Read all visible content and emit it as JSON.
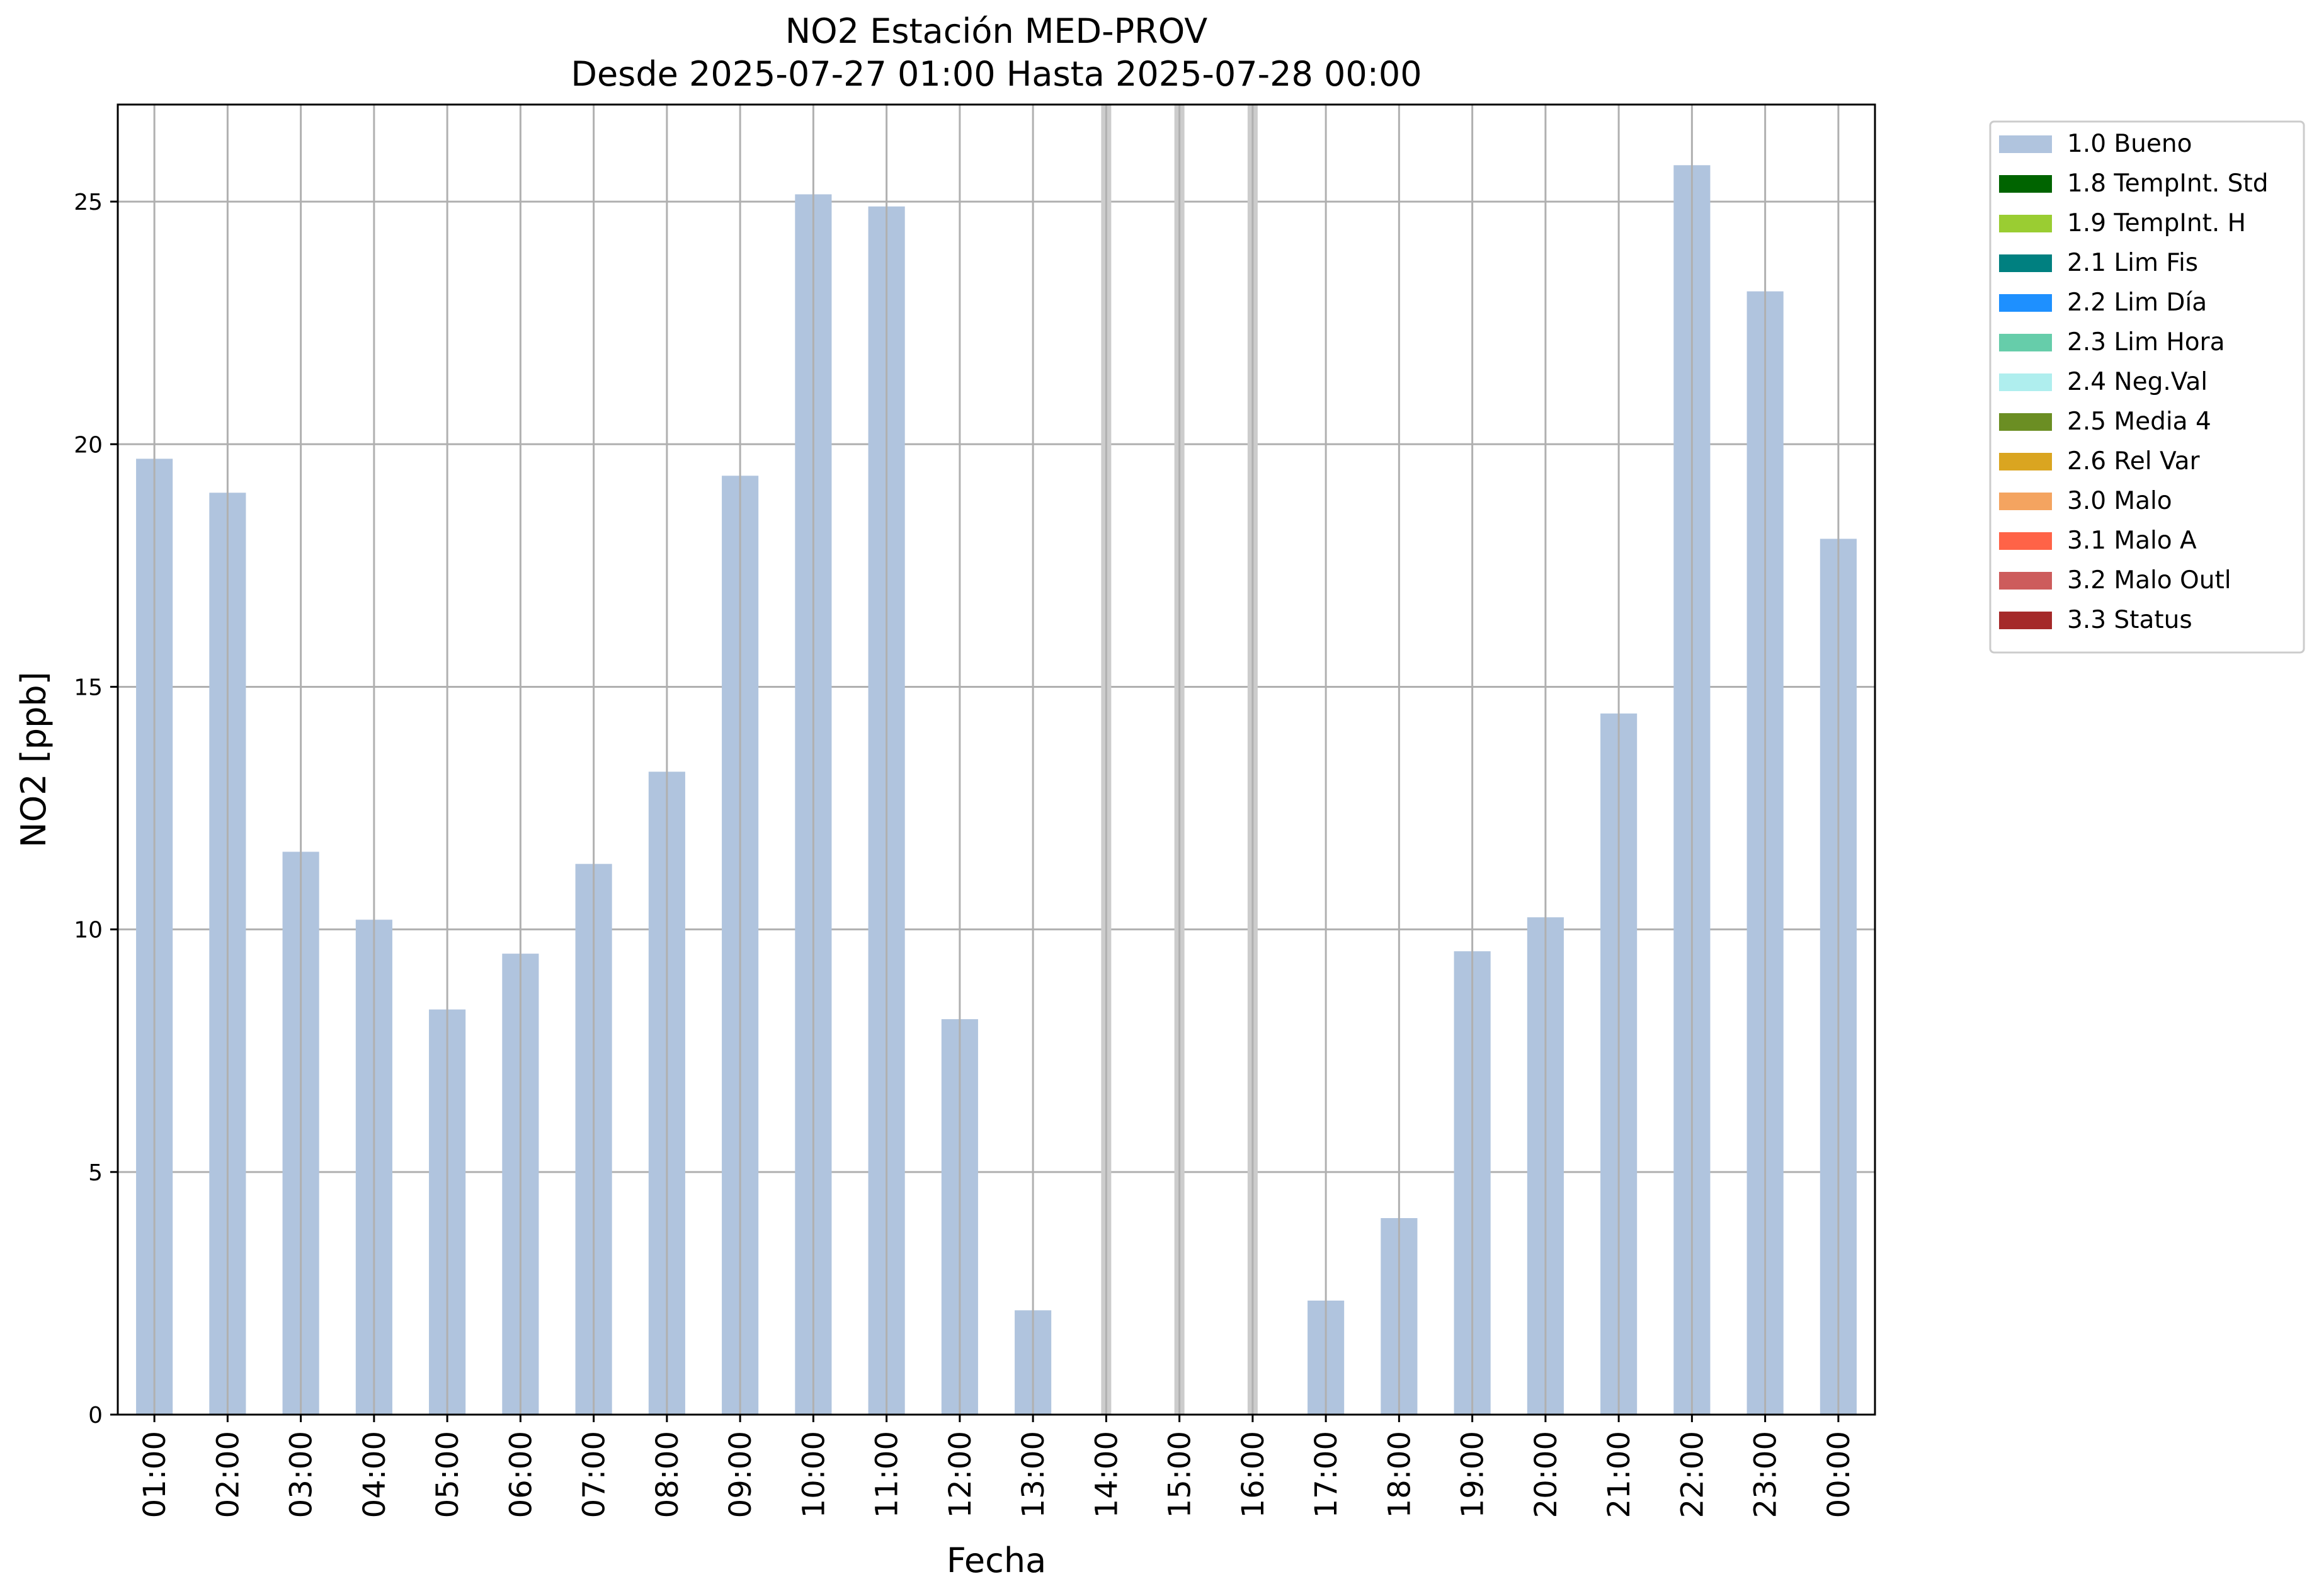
{
  "chart_data": {
    "type": "bar",
    "title": "NO2 Estación MED-PROV",
    "subtitle": "Desde 2025-07-27 01:00 Hasta 2025-07-28 00:00",
    "xlabel": "Fecha",
    "ylabel": "NO2 [ppb]",
    "ylim": [
      0,
      27
    ],
    "yticks": [
      0,
      5,
      10,
      15,
      20,
      25
    ],
    "grid": true,
    "legend_placement": "outside-top-right",
    "categories": [
      "01:00",
      "02:00",
      "03:00",
      "04:00",
      "05:00",
      "06:00",
      "07:00",
      "08:00",
      "09:00",
      "10:00",
      "11:00",
      "12:00",
      "13:00",
      "14:00",
      "15:00",
      "16:00",
      "17:00",
      "18:00",
      "19:00",
      "20:00",
      "21:00",
      "22:00",
      "23:00",
      "00:00"
    ],
    "series": [
      {
        "name": "1.0 Bueno",
        "color": "#b0c4de",
        "values": [
          19.7,
          19.0,
          11.6,
          10.2,
          8.35,
          9.5,
          11.35,
          13.25,
          19.35,
          25.15,
          24.9,
          8.15,
          2.15,
          null,
          null,
          null,
          2.35,
          4.05,
          9.55,
          10.25,
          14.45,
          25.75,
          23.15,
          18.05
        ]
      }
    ],
    "missing_markers": [
      "14:00",
      "15:00",
      "16:00"
    ],
    "legend": [
      {
        "label": "1.0 Bueno",
        "color": "#b0c4de"
      },
      {
        "label": "1.8 TempInt. Std",
        "color": "#006400"
      },
      {
        "label": "1.9 TempInt. H",
        "color": "#9acd32"
      },
      {
        "label": "2.1 Lim Fis",
        "color": "#008080"
      },
      {
        "label": "2.2 Lim Día",
        "color": "#1e90ff"
      },
      {
        "label": "2.3 Lim Hora",
        "color": "#66cdaa"
      },
      {
        "label": "2.4 Neg.Val",
        "color": "#afeeee"
      },
      {
        "label": "2.5 Media 4",
        "color": "#6b8e23"
      },
      {
        "label": "2.6 Rel Var",
        "color": "#daa520"
      },
      {
        "label": "3.0 Malo",
        "color": "#f4a460"
      },
      {
        "label": "3.1 Malo A",
        "color": "#ff6347"
      },
      {
        "label": "3.2 Malo Outl",
        "color": "#cd5c5c"
      },
      {
        "label": "3.3 Status",
        "color": "#a52a2a"
      }
    ]
  }
}
